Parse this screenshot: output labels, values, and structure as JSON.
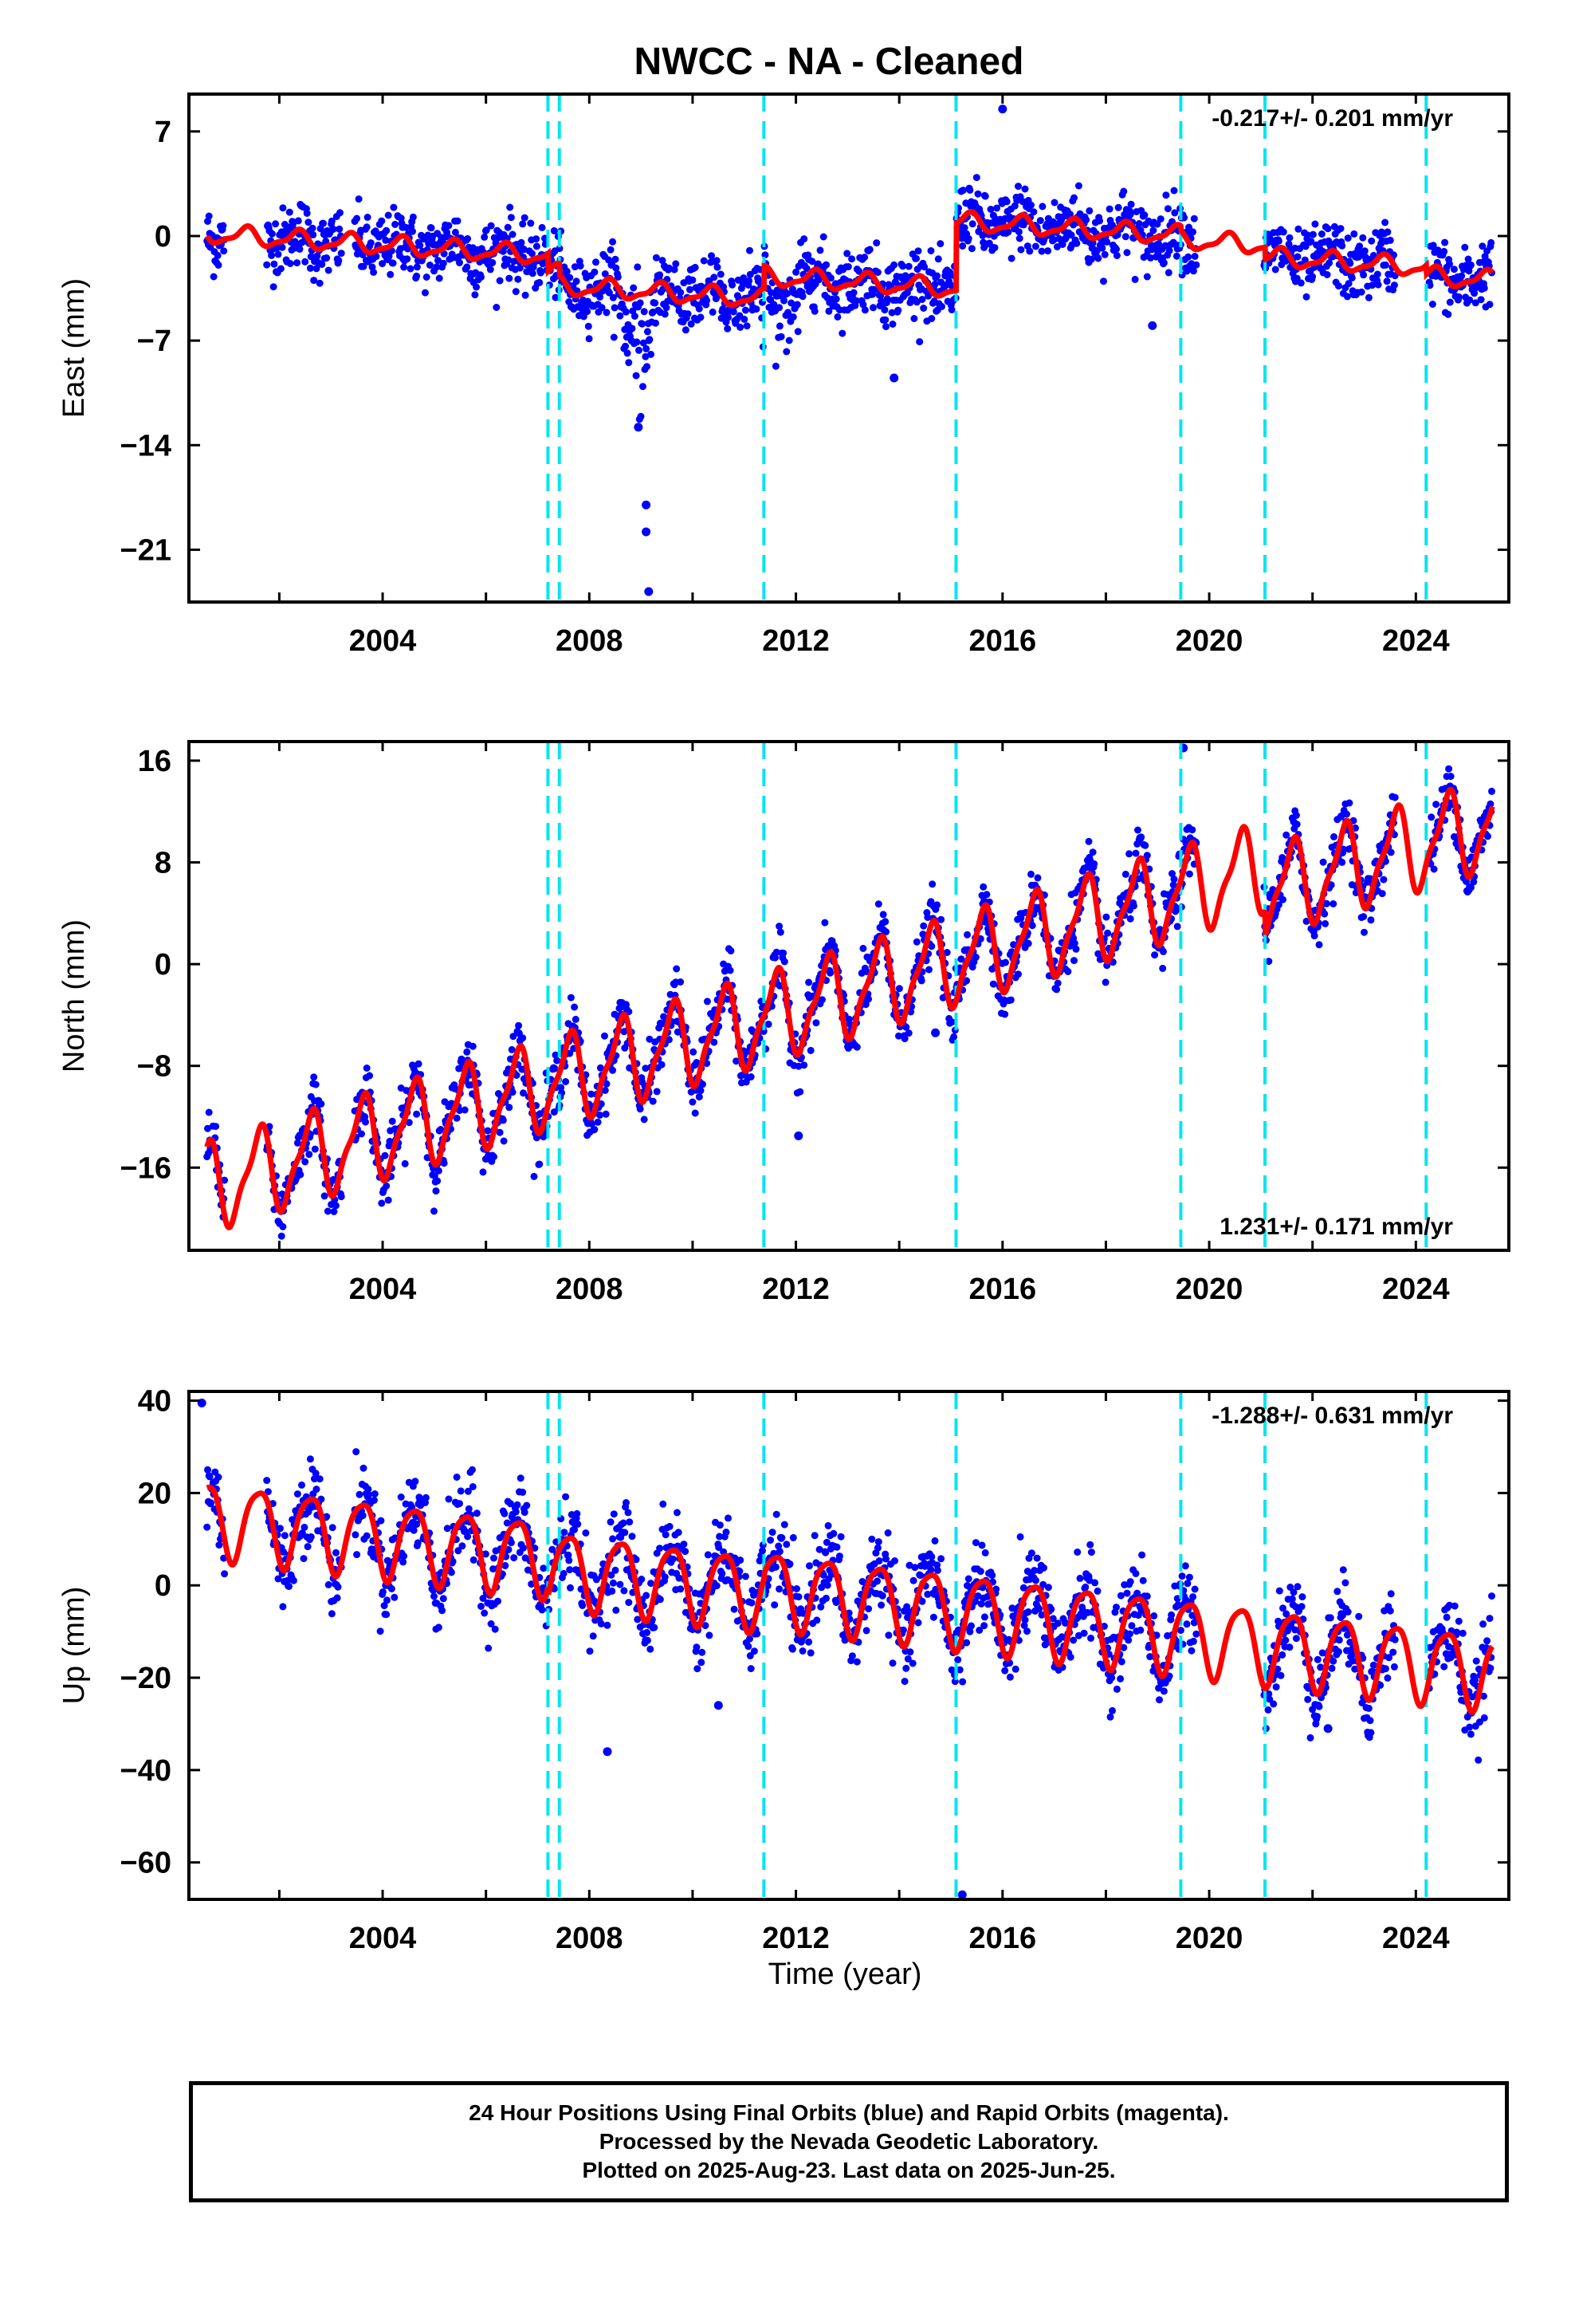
{
  "title": "NWCC  - NA - Cleaned",
  "xlabel": "Time (year)",
  "footer": {
    "line1": "24 Hour Positions Using Final Orbits (blue) and Rapid Orbits (magenta).",
    "line2": "Processed by the Nevada Geodetic Laboratory.",
    "line3": "Plotted on 2025-Aug-23. Last data on 2025-Jun-25."
  },
  "colors": {
    "data": "#0000ff",
    "model": "#ff0000",
    "steps": "#00e5ee"
  },
  "chart_data": [
    {
      "type": "scatter",
      "component": "East",
      "ylabel": "East (mm)",
      "xlim": [
        2000.25,
        2025.8
      ],
      "ylim": [
        -24.5,
        9.5
      ],
      "yticks": [
        7,
        0,
        -7,
        -14,
        -21
      ],
      "xticks": [
        2004,
        2008,
        2012,
        2016,
        2020,
        2024
      ],
      "rate_text": "-0.217+/- 0.201 mm/yr",
      "rate_position": "top-right",
      "step_lines": [
        2007.2,
        2007.42,
        2011.38,
        2015.1,
        2019.45,
        2021.08,
        2024.2
      ],
      "model": {
        "base": 0.2,
        "rate": -0.217,
        "annual_amp": 0.55,
        "annual_phase": 0.1,
        "semi_amp": 0.2,
        "semi_phase": 0.3,
        "offsets": [
          [
            2007.2,
            -1.2
          ],
          [
            2007.42,
            -0.8
          ],
          [
            2011.38,
            1.5
          ],
          [
            2015.1,
            4.5
          ],
          [
            2019.45,
            -0.3
          ],
          [
            2021.08,
            -0.8
          ],
          [
            2024.2,
            -0.6
          ]
        ]
      },
      "noise": 1.1,
      "outliers": [
        [
          2009.1,
          -18.0
        ],
        [
          2009.1,
          -19.8
        ],
        [
          2009.15,
          -23.8
        ],
        [
          2008.95,
          -12.8
        ],
        [
          2013.9,
          -9.5
        ],
        [
          2016.0,
          8.5
        ],
        [
          2018.9,
          -6.0
        ]
      ],
      "dips": [
        [
          2009.0,
          0.45,
          -7.0
        ],
        [
          2011.7,
          0.4,
          -5.5
        ]
      ]
    },
    {
      "type": "scatter",
      "component": "North",
      "ylabel": "North (mm)",
      "xlim": [
        2000.25,
        2025.8
      ],
      "ylim": [
        -22.5,
        17.5
      ],
      "yticks": [
        16,
        8,
        0,
        -8,
        -16
      ],
      "xticks": [
        2004,
        2008,
        2012,
        2016,
        2020,
        2024
      ],
      "rate_text": "1.231+/- 0.171 mm/yr",
      "rate_position": "bottom-right",
      "step_lines": [
        2007.2,
        2007.42,
        2011.38,
        2015.1,
        2019.45,
        2021.08,
        2024.2
      ],
      "model": {
        "base": -18.0,
        "rate": 1.231,
        "annual_amp": 3.2,
        "annual_phase": 0.35,
        "semi_amp": 1.0,
        "semi_phase": 0.6,
        "offsets": [
          [
            2021.08,
            -2.0
          ]
        ]
      },
      "noise": 1.2,
      "outliers": [
        [
          2012.05,
          -13.5
        ],
        [
          2014.7,
          -5.4
        ],
        [
          2019.5,
          17.0
        ]
      ],
      "dips": []
    },
    {
      "type": "scatter",
      "component": "Up",
      "ylabel": "Up (mm)",
      "xlim": [
        2000.25,
        2025.8
      ],
      "ylim": [
        -68,
        42
      ],
      "yticks": [
        40,
        20,
        0,
        -20,
        -40,
        -60
      ],
      "xticks": [
        2004,
        2008,
        2012,
        2016,
        2020,
        2024
      ],
      "rate_text": "-1.288+/- 0.631 mm/yr",
      "rate_position": "top-right",
      "step_lines": [
        2007.2,
        2007.42,
        2011.38,
        2015.1,
        2019.45,
        2021.08,
        2024.2
      ],
      "model": {
        "base": 15.0,
        "rate": -1.288,
        "annual_amp": 8.0,
        "annual_phase": 0.35,
        "semi_amp": 1.5,
        "semi_phase": 0.2,
        "offsets": [
          [
            2007.2,
            -2.0
          ],
          [
            2011.38,
            1.0
          ]
        ]
      },
      "noise": 4.5,
      "outliers": [
        [
          2015.22,
          -67.0
        ],
        [
          2008.35,
          -36.0
        ],
        [
          2000.5,
          39.5
        ],
        [
          2010.5,
          -26.0
        ],
        [
          2022.3,
          -31.0
        ]
      ],
      "dips": []
    }
  ]
}
